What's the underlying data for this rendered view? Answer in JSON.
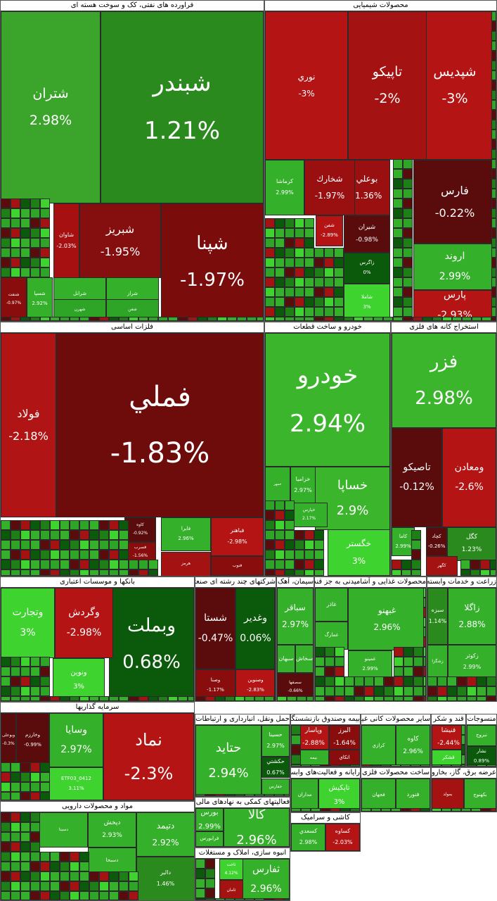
{
  "sectors": [
    {
      "id": "oil",
      "title": "فراورده های نفتی، کک و سوخت هسته ای",
      "tiles": [
        {
          "symbol": "شبندر",
          "change": "1.21%",
          "color": "#2a8a1e",
          "s": 34
        },
        {
          "symbol": "شتران",
          "change": "2.98%",
          "color": "#3aa52a",
          "s": 19
        },
        {
          "symbol": "شپنا",
          "change": "-1.97%",
          "color": "#7a0c0c",
          "s": 26
        },
        {
          "symbol": "شبریز",
          "change": "-1.95%",
          "color": "#850e0e",
          "s": 16
        },
        {
          "symbol": "شاوان",
          "change": "-2.03%",
          "color": "#a61010",
          "s": 8
        },
        {
          "symbol": "شراز",
          "change": "2.97%",
          "color": "#34b02a",
          "s": 7
        },
        {
          "symbol": "شرانل",
          "change": "2.99%",
          "color": "#34b02a",
          "s": 7
        },
        {
          "symbol": "شسپا",
          "change": "2.92%",
          "color": "#34b02a",
          "s": 7
        },
        {
          "symbol": "شفن",
          "change": "",
          "color": "#2ea526",
          "s": 6
        },
        {
          "symbol": "شهرن",
          "change": "",
          "color": "#2ea526",
          "s": 6
        },
        {
          "symbol": "شنفت",
          "change": "-0.97%",
          "color": "#8a0d0d",
          "s": 6
        }
      ]
    },
    {
      "id": "petrochem",
      "title": "محصولات شیمیایی",
      "tiles": [
        {
          "symbol": "شپديس",
          "change": "-3%",
          "color": "#b51414",
          "s": 19
        },
        {
          "symbol": "تاپيكو",
          "change": "-2%",
          "color": "#a51212",
          "s": 19
        },
        {
          "symbol": "نوري",
          "change": "-3%",
          "color": "#b51414",
          "s": 12
        },
        {
          "symbol": "فارس",
          "change": "-0.22%",
          "color": "#5a0b0b",
          "s": 16
        },
        {
          "symbol": "بوعلي",
          "change": "-1.36%",
          "color": "#9a1010",
          "s": 12
        },
        {
          "symbol": "شخارك",
          "change": "-1.97%",
          "color": "#9a1010",
          "s": 12
        },
        {
          "symbol": "كرماشا",
          "change": "2.99%",
          "color": "#34b02a",
          "s": 8
        },
        {
          "symbol": "اروند",
          "change": "2.99%",
          "color": "#34b02a",
          "s": 14
        },
        {
          "symbol": "شيران",
          "change": "-0.98%",
          "color": "#5a0b0b",
          "s": 9
        },
        {
          "symbol": "زاگرس",
          "change": "0%",
          "color": "#0b5a0b",
          "s": 7
        },
        {
          "symbol": "شفن",
          "change": "-2.89%",
          "color": "#b51414",
          "s": 7
        },
        {
          "symbol": "پارس",
          "change": "-2.93%",
          "color": "#b51414",
          "s": 14
        },
        {
          "symbol": "شاملا",
          "change": "3%",
          "color": "#3ed32e",
          "s": 7
        }
      ]
    },
    {
      "id": "metals",
      "title": "فلزات اساسی",
      "tiles": [
        {
          "symbol": "فملي",
          "change": "-1.83%",
          "color": "#6e0b0b",
          "s": 40
        },
        {
          "symbol": "فولاد",
          "change": "-2.18%",
          "color": "#b01414",
          "s": 16
        },
        {
          "symbol": "فباهنر",
          "change": "-2.98%",
          "color": "#b51414",
          "s": 8
        },
        {
          "symbol": "فايرا",
          "change": "2.96%",
          "color": "#34b02a",
          "s": 7
        },
        {
          "symbol": "كاوه",
          "change": "-0.92%",
          "color": "#5a0b0b",
          "s": 6
        },
        {
          "symbol": "فسرب",
          "change": "-1.56%",
          "color": "#8a0d0d",
          "s": 6
        },
        {
          "symbol": "هرمز",
          "change": "",
          "color": "#a51212",
          "s": 6
        },
        {
          "symbol": "فنوب",
          "change": "",
          "color": "#8a0d0d",
          "s": 6
        }
      ]
    },
    {
      "id": "auto",
      "title": "خودرو و ساخت قطعات",
      "tiles": [
        {
          "symbol": "خودرو",
          "change": "2.94%",
          "color": "#3ab52c",
          "s": 34
        },
        {
          "symbol": "خساپا",
          "change": "2.9%",
          "color": "#3ab52c",
          "s": 18
        },
        {
          "symbol": "خزامیا",
          "change": "2.97%",
          "color": "#34b02a",
          "s": 8
        },
        {
          "symbol": "خمهر",
          "change": "",
          "color": "#34b02a",
          "s": 5
        },
        {
          "symbol": "خگستر",
          "change": "3%",
          "color": "#3ed32e",
          "s": 12
        },
        {
          "symbol": "خپارس",
          "change": "2.17%",
          "color": "#34b02a",
          "s": 6
        }
      ]
    },
    {
      "id": "mining",
      "title": "استخراج کانه های فلزی",
      "tiles": [
        {
          "symbol": "فزر",
          "change": "2.98%",
          "color": "#3ab52c",
          "s": 26
        },
        {
          "symbol": "ومعادن",
          "change": "-2.6%",
          "color": "#b51414",
          "s": 14
        },
        {
          "symbol": "تاصيكو",
          "change": "-0.12%",
          "color": "#5a0b0b",
          "s": 14
        },
        {
          "symbol": "كگل",
          "change": "1.23%",
          "color": "#2a8a1e",
          "s": 9
        },
        {
          "symbol": "كچاد",
          "change": "-0.26%",
          "color": "#5a0b0b",
          "s": 7
        },
        {
          "symbol": "كاما",
          "change": "2.99%",
          "color": "#34b02a",
          "s": 7
        },
        {
          "symbol": "كگهر",
          "change": "",
          "color": "#a51212",
          "s": 6
        }
      ]
    },
    {
      "id": "banks",
      "title": "بانکها و موسسات اعتباری",
      "tiles": [
        {
          "symbol": "وبملت",
          "change": "0.68%",
          "color": "#0b5a0b",
          "s": 26
        },
        {
          "symbol": "وگردش",
          "change": "-2.98%",
          "color": "#b51414",
          "s": 14
        },
        {
          "symbol": "وتجارت",
          "change": "3%",
          "color": "#3ed32e",
          "s": 14
        },
        {
          "symbol": "ونوين",
          "change": "3%",
          "color": "#3ed32e",
          "s": 10
        }
      ]
    },
    {
      "id": "multi",
      "title": "شرکتهای چند رشته ای صنعتی",
      "tiles": [
        {
          "symbol": "وغدير",
          "change": "0.06%",
          "color": "#0b5a0b",
          "s": 14
        },
        {
          "symbol": "شستا",
          "change": "-0.47%",
          "color": "#5a0b0b",
          "s": 14
        },
        {
          "symbol": "وصنوين",
          "change": "-2.83%",
          "color": "#b51414",
          "s": 7
        },
        {
          "symbol": "وصنا",
          "change": "-1.17%",
          "color": "#8a0d0d",
          "s": 7
        }
      ]
    },
    {
      "id": "cement",
      "title": "سیمان، آهک و گچ",
      "tiles": [
        {
          "symbol": "سباقر",
          "change": "2.97%",
          "color": "#34b02a",
          "s": 12
        },
        {
          "symbol": "سبهان",
          "change": "",
          "color": "#34b02a",
          "s": 8
        },
        {
          "symbol": "سخاش",
          "change": "",
          "color": "#34b02a",
          "s": 8
        },
        {
          "symbol": "سصفها",
          "change": "-0.66%",
          "color": "#5a0b0b",
          "s": 6
        }
      ]
    },
    {
      "id": "food",
      "title": "محصولات غذایی و آشامیدنی به جز قند و شکر",
      "tiles": [
        {
          "symbol": "غبهنو",
          "change": "2.96%",
          "color": "#34b02a",
          "s": 12
        },
        {
          "symbol": "غاذر",
          "change": "",
          "color": "#34b02a",
          "s": 8
        },
        {
          "symbol": "غمينو",
          "change": "2.99%",
          "color": "#34b02a",
          "s": 7
        },
        {
          "symbol": "غمارگ",
          "change": "",
          "color": "#34b02a",
          "s": 7
        }
      ]
    },
    {
      "id": "agri",
      "title": "زراعت و خدمات وابسته",
      "tiles": [
        {
          "symbol": "زاگلا",
          "change": "2.88%",
          "color": "#34b02a",
          "s": 12
        },
        {
          "symbol": "سبزه",
          "change": "1.14%",
          "color": "#2a8a1e",
          "s": 8
        },
        {
          "symbol": "زكوثر",
          "change": "2.99%",
          "color": "#34b02a",
          "s": 8
        },
        {
          "symbol": "زشگزا",
          "change": "",
          "color": "#34b02a",
          "s": 6
        }
      ]
    },
    {
      "id": "invest",
      "title": "سرمایه گذاریها",
      "tiles": [
        {
          "symbol": "نماد",
          "change": "-2.3%",
          "color": "#b51414",
          "s": 24
        },
        {
          "symbol": "وسايا",
          "change": "2.97%",
          "color": "#34b02a",
          "s": 14
        },
        {
          "symbol": "وخارزم",
          "change": "-0.99%",
          "color": "#5a0b0b",
          "s": 7
        },
        {
          "symbol": "وبوعلی",
          "change": "-0.3%",
          "color": "#5a0b0b",
          "s": 7
        },
        {
          "symbol": "ETF03_0412",
          "change": "3.11%",
          "color": "#3ed32e",
          "s": 7
        }
      ]
    },
    {
      "id": "transport",
      "title": "حمل ونقل، انبارداری و ارتباطات",
      "tiles": [
        {
          "symbol": "حتايد",
          "change": "2.94%",
          "color": "#34b02a",
          "s": 18
        },
        {
          "symbol": "حسينا",
          "change": "2.97%",
          "color": "#34b02a",
          "s": 8
        },
        {
          "symbol": "حكشتي",
          "change": "0.67%",
          "color": "#0b5a0b",
          "s": 8
        },
        {
          "symbol": "حفارس",
          "change": "",
          "color": "#34b02a",
          "s": 6
        }
      ]
    },
    {
      "id": "pharma",
      "title": "مواد و محصولات دارویی",
      "tiles": [
        {
          "symbol": "دتيمد",
          "change": "2.92%",
          "color": "#34b02a",
          "s": 12
        },
        {
          "symbol": "دپخش",
          "change": "2.93%",
          "color": "#34b02a",
          "s": 9
        },
        {
          "symbol": "دالبر",
          "change": "1.46%",
          "color": "#2a8a1e",
          "s": 8
        },
        {
          "symbol": "دسبحا",
          "change": "",
          "color": "#34b02a",
          "s": 7
        },
        {
          "symbol": "دسينا",
          "change": "",
          "color": "#34b02a",
          "s": 6
        }
      ]
    },
    {
      "id": "finance",
      "title": "فعالیتهای کمکی به نهادهای مالی واسط",
      "tiles": [
        {
          "symbol": "كالا",
          "change": "2.96%",
          "color": "#34b02a",
          "s": 18
        },
        {
          "symbol": "بورس",
          "change": "2.99%",
          "color": "#34b02a",
          "s": 10
        },
        {
          "symbol": "فرابورس",
          "change": "",
          "color": "#34b02a",
          "s": 8
        }
      ]
    },
    {
      "id": "realestate",
      "title": "انبوه سازی، املاک و مستغلات",
      "tiles": [
        {
          "symbol": "ثفارس",
          "change": "2.96%",
          "color": "#34b02a",
          "s": 14
        },
        {
          "symbol": "ثاخت",
          "change": "4.12%",
          "color": "#3ed32e",
          "s": 6
        },
        {
          "symbol": "ثامان",
          "change": "",
          "color": "#a51212",
          "s": 6
        }
      ]
    },
    {
      "id": "insurance",
      "title": "بیمه وصندوق بازنشستگی به جزتامین اجتماعی",
      "tiles": [
        {
          "symbol": "البرز",
          "change": "-1.64%",
          "color": "#8a0d0d",
          "s": 9
        },
        {
          "symbol": "وپاسار",
          "change": "-2.88%",
          "color": "#b51414",
          "s": 9
        },
        {
          "symbol": "اتكاي",
          "change": "",
          "color": "#8a0d0d",
          "s": 7
        },
        {
          "symbol": "بيمه",
          "change": "",
          "color": "#34b02a",
          "s": 6
        }
      ]
    },
    {
      "id": "nonmetal",
      "title": "سایر محصولات کانی غیرفلزی",
      "tiles": [
        {
          "symbol": "كاوه",
          "change": "2.96%",
          "color": "#34b02a",
          "s": 9
        },
        {
          "symbol": "كرازي",
          "change": "",
          "color": "#34b02a",
          "s": 7
        }
      ]
    },
    {
      "id": "sugar",
      "title": "قند و شکر",
      "tiles": [
        {
          "symbol": "قنيشا",
          "change": "-2.44%",
          "color": "#b51414",
          "s": 9
        },
        {
          "symbol": "قشكر",
          "change": "",
          "color": "#3ed32e",
          "s": 7
        }
      ]
    },
    {
      "id": "computer",
      "title": "رایانه و فعالیت‌های وابسته به آن",
      "tiles": [
        {
          "symbol": "تاپكيش",
          "change": "3%",
          "color": "#3ed32e",
          "s": 10
        },
        {
          "symbol": "مداران",
          "change": "",
          "color": "#34b02a",
          "s": 7
        }
      ]
    },
    {
      "id": "tile",
      "title": "کاشی و سرامیک",
      "tiles": [
        {
          "symbol": "كساوه",
          "change": "-2.03%",
          "color": "#b51414",
          "s": 8
        },
        {
          "symbol": "كسعدي",
          "change": "2.98%",
          "color": "#34b02a",
          "s": 8
        }
      ]
    },
    {
      "id": "metalprod",
      "title": "ساخت محصولات فلزی",
      "tiles": [
        {
          "symbol": "فنورد",
          "change": "",
          "color": "#34b02a",
          "s": 8
        },
        {
          "symbol": "فجهان",
          "change": "",
          "color": "#34b02a",
          "s": 7
        }
      ]
    },
    {
      "id": "textile",
      "title": "منسوجات",
      "tiles": [
        {
          "symbol": "نبروج",
          "change": "",
          "color": "#34b02a",
          "s": 7
        },
        {
          "symbol": "نشار",
          "change": "0.89%",
          "color": "#0b5a0b",
          "s": 7
        }
      ]
    },
    {
      "id": "misc",
      "title": "عرضه برق، گاز، بخاروآب گرم",
      "tiles": [
        {
          "symbol": "بكهنوج",
          "change": "",
          "color": "#34b02a",
          "s": 7
        },
        {
          "symbol": "بمولد",
          "change": "",
          "color": "#a51212",
          "s": 6
        }
      ]
    }
  ]
}
